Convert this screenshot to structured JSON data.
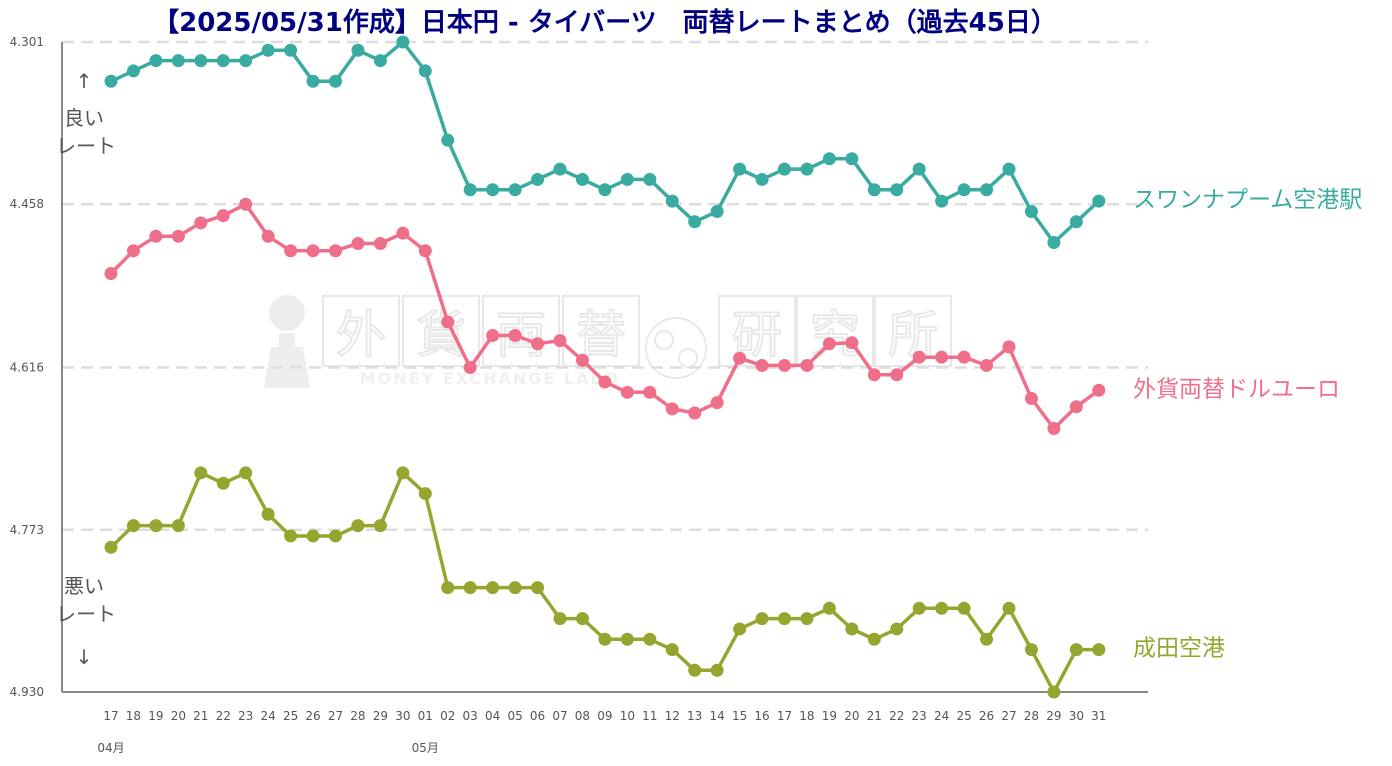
{
  "chart_data": {
    "type": "line",
    "title": "【2025/05/31作成】日本円 - タイバーツ　両替レートまとめ（過去45日）",
    "y_ticks": [
      "4.301",
      "4.458",
      "4.616",
      "4.773",
      "4.930"
    ],
    "ylim": [
      4.301,
      4.93
    ],
    "y_inverted": true,
    "grid": "horizontal-dashed",
    "x": [
      "17",
      "18",
      "19",
      "20",
      "21",
      "22",
      "23",
      "24",
      "25",
      "26",
      "27",
      "28",
      "29",
      "30",
      "01",
      "02",
      "03",
      "04",
      "05",
      "06",
      "07",
      "08",
      "09",
      "10",
      "11",
      "12",
      "13",
      "14",
      "15",
      "16",
      "17",
      "18",
      "19",
      "20",
      "21",
      "22",
      "23",
      "24",
      "25",
      "26",
      "27",
      "28",
      "29",
      "30",
      "31"
    ],
    "month_labels": [
      {
        "label": "04月",
        "index": 0
      },
      {
        "label": "05月",
        "index": 14
      }
    ],
    "annotations": {
      "better": {
        "arrow": "↑",
        "line1": "良い",
        "line2": "レート"
      },
      "worse": {
        "line1": "悪い",
        "line2": "レート",
        "arrow": "↓"
      }
    },
    "watermark": {
      "kanji": [
        "外",
        "貨",
        "両",
        "替",
        "研",
        "究",
        "所"
      ],
      "subtitle": "MONEY EXCHANGE LABO"
    },
    "series": [
      {
        "name": "スワンナプーム空港駅",
        "color": "#3aaba1",
        "values": [
          4.339,
          4.329,
          4.319,
          4.319,
          4.319,
          4.319,
          4.319,
          4.309,
          4.309,
          4.339,
          4.339,
          4.309,
          4.319,
          4.301,
          4.329,
          4.396,
          4.444,
          4.444,
          4.444,
          4.434,
          4.424,
          4.434,
          4.444,
          4.434,
          4.434,
          4.455,
          4.475,
          4.465,
          4.424,
          4.434,
          4.424,
          4.424,
          4.414,
          4.414,
          4.444,
          4.444,
          4.424,
          4.455,
          4.444,
          4.444,
          4.424,
          4.465,
          4.495,
          4.475,
          4.455
        ]
      },
      {
        "name": "外貨両替ドルユーロ",
        "color": "#ef6f8a",
        "values": [
          4.525,
          4.503,
          4.489,
          4.489,
          4.476,
          4.469,
          4.458,
          4.489,
          4.503,
          4.503,
          4.503,
          4.496,
          4.496,
          4.486,
          4.503,
          4.572,
          4.616,
          4.585,
          4.585,
          4.593,
          4.59,
          4.609,
          4.63,
          4.64,
          4.64,
          4.656,
          4.66,
          4.65,
          4.607,
          4.614,
          4.614,
          4.614,
          4.593,
          4.592,
          4.623,
          4.623,
          4.606,
          4.606,
          4.606,
          4.614,
          4.596,
          4.646,
          4.675,
          4.654,
          4.638
        ]
      },
      {
        "name": "成田空港",
        "color": "#96a530",
        "values": [
          4.79,
          4.769,
          4.769,
          4.769,
          4.718,
          4.728,
          4.718,
          4.758,
          4.779,
          4.779,
          4.779,
          4.769,
          4.769,
          4.718,
          4.738,
          4.829,
          4.829,
          4.829,
          4.829,
          4.829,
          4.859,
          4.859,
          4.879,
          4.879,
          4.879,
          4.889,
          4.909,
          4.909,
          4.869,
          4.859,
          4.859,
          4.859,
          4.849,
          4.869,
          4.879,
          4.869,
          4.849,
          4.849,
          4.849,
          4.879,
          4.849,
          4.889,
          4.93,
          4.889,
          4.889
        ]
      }
    ]
  }
}
